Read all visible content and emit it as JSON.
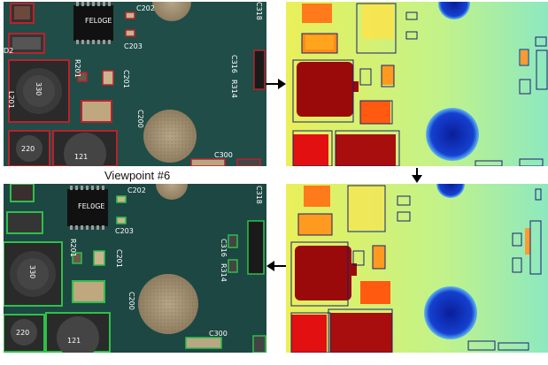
{
  "caption": "Viewpoint #6",
  "board_labels": {
    "c202": "C202",
    "c203": "C203",
    "c318": "C318",
    "c316": "C316",
    "r314": "R314",
    "r201": "R201",
    "c201": "C201",
    "c200": "C200",
    "c300": "C300",
    "d2": "D2",
    "l201": "L201",
    "ic_top": "FEL0GE",
    "inductor_330": "330",
    "inductor_220": "220",
    "inductor_121": "121"
  },
  "colors": {
    "board": "#1f4a44",
    "highlight_top": "#b8232c",
    "highlight_bottom": "#2fbf4a",
    "heat_bg": "#c8f07a",
    "heat_red": "#9a0a0a",
    "heat_blue": "#0a1e9a"
  }
}
